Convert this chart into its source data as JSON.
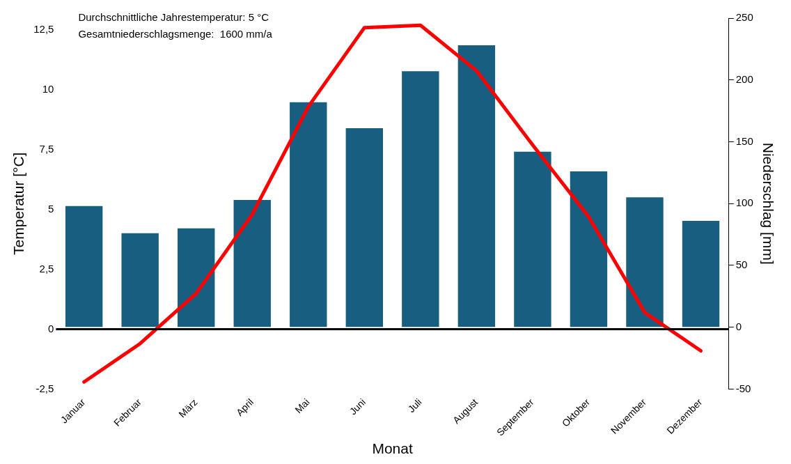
{
  "chart_data": {
    "type": "bar",
    "xlabel": "Monat",
    "ylabel": "Temperatur [°C]",
    "y2label": "Niederschlag [mm]",
    "annotations": [
      "Durchschnittliche Jahrestemperatur: 5 °C",
      "Gesamtniederschlagsmenge:  1600 mm/a"
    ],
    "categories": [
      "Januar",
      "Februar",
      "März",
      "April",
      "Mai",
      "Juni",
      "Juli",
      "August",
      "September",
      "Oktober",
      "November",
      "Dezember"
    ],
    "series": [
      {
        "axis": "y2",
        "color": "#175e80",
        "values": [
          98,
          76,
          80,
          103,
          182,
          161,
          207,
          228,
          142,
          126,
          105,
          86
        ]
      },
      {
        "type": "line",
        "axis": "y",
        "color": "#ff0000",
        "marker": "none",
        "line_style": "solid",
        "values": [
          -2.2,
          -0.6,
          1.5,
          4.8,
          9.3,
          12.6,
          12.7,
          10.8,
          7.7,
          4.7,
          0.7,
          -0.9
        ]
      }
    ],
    "ylim": [
      -2.5,
      13
    ],
    "yticks": [
      {
        "value": -2.5,
        "label": "-2,5"
      },
      0,
      {
        "value": 2.5,
        "label": "2,5"
      },
      5,
      {
        "value": 7.5,
        "label": "7,5"
      },
      10,
      {
        "value": 12.5,
        "label": "12,5"
      }
    ],
    "y2lim": [
      -50,
      250
    ],
    "y2ticks": [
      -50,
      0,
      50,
      100,
      150,
      200,
      250
    ],
    "ref_lines": [
      {
        "axis": "y",
        "value": 0,
        "color": "#000000"
      }
    ],
    "grid": false,
    "legend": false
  }
}
